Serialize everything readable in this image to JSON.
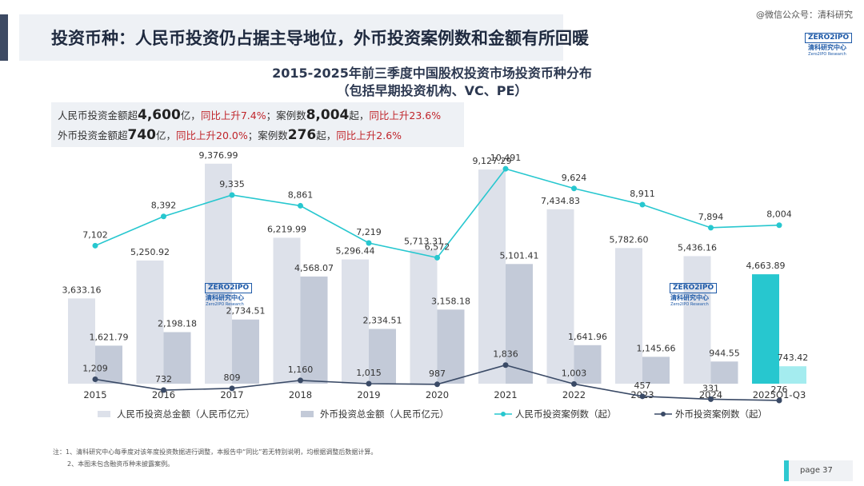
{
  "header": {
    "title": "投资币种：人民币投资仍占据主导地位，外币投资案例数和金额有所回暖",
    "wechat": "@微信公众号：清科研究",
    "logo_box": "ZERO2IPO",
    "logo_cn": "清科研究中心",
    "logo_en": "Zero2IPO Research"
  },
  "summary": {
    "line1": {
      "p1": "人民币投资金额超",
      "n1": "4,600",
      "p2": "亿，",
      "r1": "同比上升7.4%",
      "p3": "；案例数",
      "n2": "8,004",
      "p4": "起，",
      "r2": "同比上升23.6%"
    },
    "line2": {
      "p1": "外币投资金额超",
      "n1": "740",
      "p2": "亿，",
      "r1": "同比上升20.0%",
      "p3": "；案例数",
      "n2": "276",
      "p4": "起，",
      "r2": "同比上升2.6%"
    }
  },
  "chart_data": {
    "type": "bar",
    "title": "2015-2025年前三季度中国股权投资市场投资币种分布",
    "subtitle": "（包括早期投资机构、VC、PE）",
    "categories": [
      "2015",
      "2016",
      "2017",
      "2018",
      "2019",
      "2020",
      "2021",
      "2022",
      "2023",
      "2024",
      "2025Q1-Q3"
    ],
    "series": [
      {
        "name": "人民币投资总金额（人民币亿元）",
        "kind": "bar",
        "axis": "left",
        "color": "#dde1ea",
        "highlight_color": "#27c7cf",
        "values": [
          3633.16,
          5250.92,
          9376.99,
          6219.99,
          5296.44,
          5713.31,
          9127.29,
          7434.83,
          5782.6,
          5436.16,
          4663.89
        ],
        "labels": [
          "3,633.16",
          "5,250.92",
          "9,376.99",
          "6,219.99",
          "5,296.44",
          "5,713.31",
          "9,127.29",
          "7,434.83",
          "5,782.60",
          "5,436.16",
          "4,663.89"
        ]
      },
      {
        "name": "外币投资总金额（人民币亿元）",
        "kind": "bar",
        "axis": "left",
        "color": "#c3cad8",
        "highlight_color": "#a4ecef",
        "values": [
          1621.79,
          2198.18,
          2734.51,
          4568.07,
          2334.51,
          3158.18,
          5101.41,
          1641.96,
          1145.66,
          944.55,
          743.42
        ],
        "labels": [
          "1,621.79",
          "2,198.18",
          "2,734.51",
          "4,568.07",
          "2,334.51",
          "3,158.18",
          "5,101.41",
          "1,641.96",
          "1,145.66",
          "944.55",
          "743.42"
        ]
      },
      {
        "name": "人民币投资案例数（起）",
        "kind": "line",
        "axis": "right",
        "color": "#27c7cf",
        "values": [
          7102,
          8392,
          9335,
          8861,
          7219,
          6572,
          10491,
          9624,
          8911,
          7894,
          8004
        ],
        "labels": [
          "7,102",
          "8,392",
          "9,335",
          "8,861",
          "7,219",
          "6,572",
          "10,491",
          "9,624",
          "8,911",
          "7,894",
          "8,004"
        ]
      },
      {
        "name": "外币投资案例数（起）",
        "kind": "line",
        "axis": "right",
        "color": "#3a4a66",
        "values": [
          1209,
          732,
          809,
          1160,
          1015,
          987,
          1836,
          1003,
          457,
          331,
          276
        ],
        "labels": [
          "1,209",
          "732",
          "809",
          "1,160",
          "1,015",
          "987",
          "1,836",
          "1,003",
          "457",
          "331",
          "276"
        ]
      }
    ],
    "highlight_category": "2025Q1-Q3",
    "grid": false,
    "legend_position": "bottom"
  },
  "watermark": {
    "box": "ZERO2IPO",
    "cn": "清科研究中心",
    "en": "Zero2IPO Research"
  },
  "notes": [
    "注：1、清科研究中心每季度对该年度投资数据进行调整，本报告中“同比”若无特别说明，均根据调整后数据计算。",
    "2、本图未包含融资币种未披露案例。"
  ],
  "page": "page  37"
}
